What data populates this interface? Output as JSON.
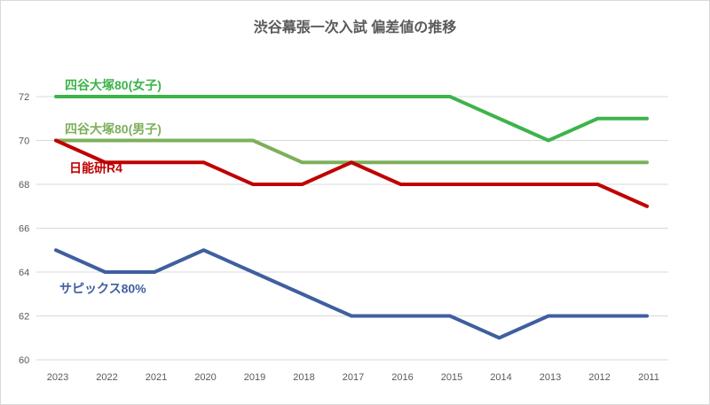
{
  "chart_data": {
    "type": "line",
    "title": "渋谷幕張一次入試 偏差値の推移",
    "categories": [
      "2023",
      "2022",
      "2021",
      "2020",
      "2019",
      "2018",
      "2017",
      "2016",
      "2015",
      "2014",
      "2013",
      "2012",
      "2011"
    ],
    "ylim": [
      60,
      72
    ],
    "yticks": [
      60,
      62,
      64,
      66,
      68,
      70,
      72
    ],
    "grid": true,
    "series": [
      {
        "name": "四谷大塚80(女子)",
        "color": "#3cb44b",
        "values": [
          72,
          72,
          72,
          72,
          72,
          72,
          72,
          72,
          72,
          71,
          70,
          71,
          71
        ]
      },
      {
        "name": "四谷大塚80(男子)",
        "color": "#7cb05a",
        "values": [
          70,
          70,
          70,
          70,
          70,
          69,
          69,
          69,
          69,
          69,
          69,
          69,
          69
        ]
      },
      {
        "name": "日能研R4",
        "color": "#c00000",
        "values": [
          70,
          69,
          69,
          69,
          68,
          68,
          69,
          68,
          68,
          68,
          68,
          68,
          67
        ]
      },
      {
        "name": "サピックス80%",
        "color": "#3f5f9f",
        "values": [
          65,
          64,
          64,
          65,
          64,
          63,
          62,
          62,
          62,
          61,
          62,
          62,
          62
        ]
      }
    ]
  }
}
